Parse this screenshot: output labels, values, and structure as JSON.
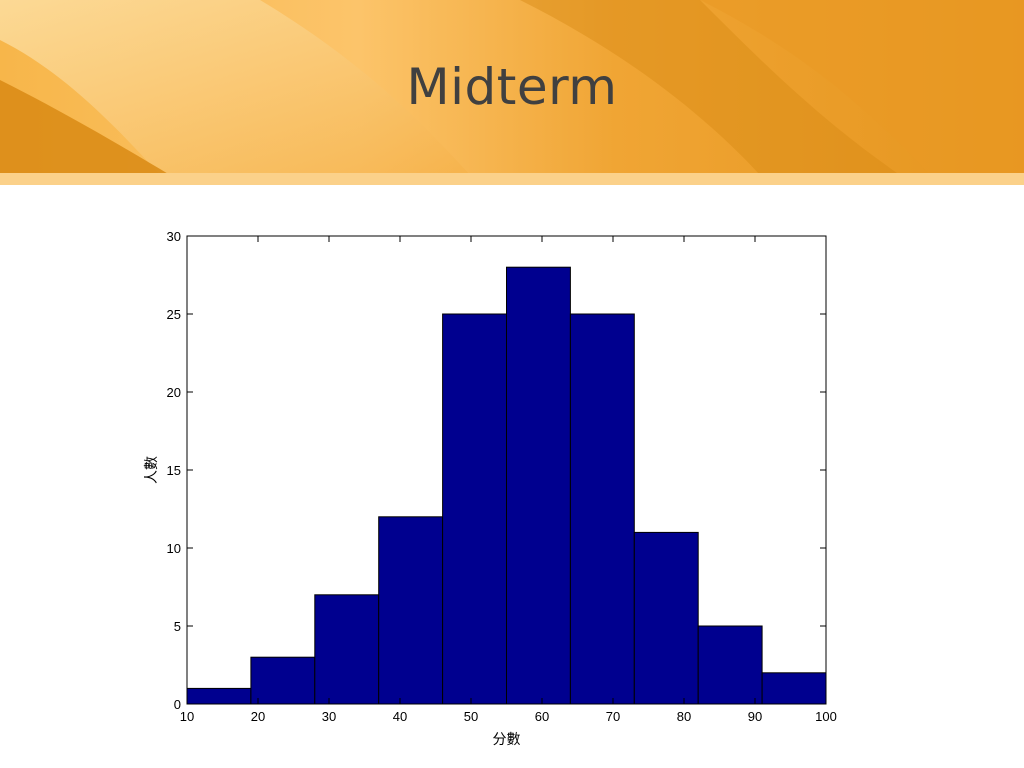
{
  "slide": {
    "title": "Midterm"
  },
  "colors": {
    "banner_light": "#fbd48a",
    "banner_mid": "#f3a93a",
    "banner_dark": "#d58a12",
    "bar_fill": "#00008f",
    "title_text": "#404040"
  },
  "chart_data": {
    "type": "bar",
    "title": "",
    "xlabel": "分數",
    "ylabel": "人數",
    "xlim": [
      10,
      100
    ],
    "ylim": [
      0,
      30
    ],
    "xticks": [
      10,
      20,
      30,
      40,
      50,
      60,
      70,
      80,
      90,
      100
    ],
    "yticks": [
      0,
      5,
      10,
      15,
      20,
      25,
      30
    ],
    "bin_edges": [
      10,
      19,
      28,
      37,
      46,
      55,
      64,
      73,
      82,
      91,
      100
    ],
    "values": [
      1,
      3,
      7,
      12,
      25,
      28,
      25,
      11,
      5,
      2
    ],
    "grid": false,
    "legend": "none"
  }
}
